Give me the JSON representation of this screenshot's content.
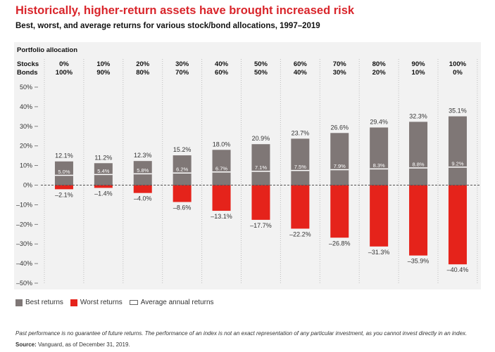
{
  "chart_data": {
    "type": "bar",
    "title": "Historically, higher-return assets have brought increased risk",
    "subtitle": "Best, worst, and average returns for various stock/bond allocations, 1997–2019",
    "section_label": "Portfolio allocation",
    "row_labels": {
      "stocks": "Stocks",
      "bonds": "Bonds"
    },
    "stocks": [
      "0%",
      "10%",
      "20%",
      "30%",
      "40%",
      "50%",
      "60%",
      "70%",
      "80%",
      "90%",
      "100%"
    ],
    "bonds": [
      "100%",
      "90%",
      "80%",
      "70%",
      "60%",
      "50%",
      "40%",
      "30%",
      "20%",
      "10%",
      "0%"
    ],
    "series": [
      {
        "name": "Best returns",
        "values": [
          12.1,
          11.2,
          12.3,
          15.2,
          18.0,
          20.9,
          23.7,
          26.6,
          29.4,
          32.3,
          35.1
        ],
        "labels": [
          "12.1%",
          "11.2%",
          "12.3%",
          "15.2%",
          "18.0%",
          "20.9%",
          "23.7%",
          "26.6%",
          "29.4%",
          "32.3%",
          "35.1%"
        ]
      },
      {
        "name": "Worst returns",
        "values": [
          -2.1,
          -1.4,
          -4.0,
          -8.6,
          -13.1,
          -17.7,
          -22.2,
          -26.8,
          -31.3,
          -35.9,
          -40.4
        ],
        "labels": [
          "–2.1%",
          "–1.4%",
          "–4.0%",
          "–8.6%",
          "–13.1%",
          "–17.7%",
          "–22.2%",
          "–26.8%",
          "–31.3%",
          "–35.9%",
          "–40.4%"
        ]
      },
      {
        "name": "Average annual returns",
        "values": [
          5.0,
          5.4,
          5.8,
          6.2,
          6.7,
          7.1,
          7.5,
          7.9,
          8.3,
          8.8,
          9.2
        ],
        "labels": [
          "5.0%",
          "5.4%",
          "5.8%",
          "6.2%",
          "6.7%",
          "7.1%",
          "7.5%",
          "7.9%",
          "8.3%",
          "8.8%",
          "9.2%"
        ]
      }
    ],
    "ylim": [
      -50,
      50
    ],
    "yticks": [
      50,
      40,
      30,
      20,
      10,
      0,
      -10,
      -20,
      -30,
      -40,
      -50
    ],
    "ytick_labels": [
      "50%",
      "40%",
      "30%",
      "20%",
      "10%",
      "0%",
      "–10%",
      "–20%",
      "–30%",
      "–40%",
      "–50%"
    ],
    "legend_position": "bottom-left"
  },
  "colors": {
    "best": "#7f7776",
    "worst": "#e5231b",
    "title": "#d9252b",
    "panel": "#f2f2f2"
  },
  "legend": {
    "best": "Best returns",
    "worst": "Worst returns",
    "avg": "Average annual returns"
  },
  "footnote": "Past performance is no guarantee of future returns. The performance of an index is not an exact representation of any particular investment, as you cannot invest directly in an index.",
  "source_label": "Source:",
  "source_text": " Vanguard, as of December 31, 2019."
}
